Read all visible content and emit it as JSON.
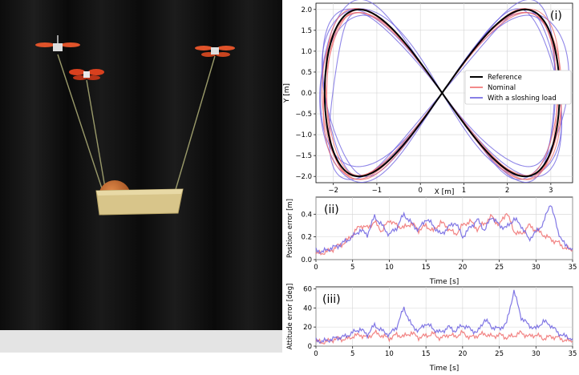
{
  "figure": {
    "panel_i_label": "(i)",
    "panel_ii_label": "(ii)",
    "panel_iii_label": "(iii)"
  },
  "colors": {
    "reference": "#000000",
    "nominal": "#f06e6e",
    "sloshing": "#6b5fe0",
    "photo_background": "#141414",
    "photo_floor": "#e6e6e6"
  },
  "photo": {
    "description_icons": [
      "quadrotor-icon",
      "quadrotor-icon",
      "quadrotor-icon",
      "basket-icon",
      "basketball-icon"
    ]
  },
  "chart_data": [
    {
      "type": "line",
      "id": "trajectory",
      "title": "",
      "xlabel": "X [m]",
      "ylabel": "Y [m]",
      "xlim": [
        -2.4,
        3.5
      ],
      "ylim": [
        -2.15,
        2.15
      ],
      "xticks": [
        -2,
        -1,
        0,
        1,
        2,
        3
      ],
      "yticks": [
        -2.0,
        -1.5,
        -1.0,
        -0.5,
        0.0,
        0.5,
        1.0,
        1.5,
        2.0
      ],
      "grid": true,
      "legend_position": "right",
      "series": [
        {
          "name": "Reference",
          "center_x": 0.5,
          "amp_x": 2.7,
          "amp_y": 2.0,
          "color_key": "reference"
        },
        {
          "name": "Nominal",
          "center_x": 0.5,
          "amp_x": 2.7,
          "amp_y": 2.0,
          "color_key": "nominal"
        },
        {
          "name": "With a sloshing load",
          "center_x": 0.5,
          "amp_x": 2.7,
          "amp_y": 2.0,
          "color_key": "sloshing"
        }
      ]
    },
    {
      "type": "line",
      "id": "position_error",
      "xlabel": "Time [s]",
      "ylabel": "Position error [m]",
      "xlim": [
        0,
        35
      ],
      "ylim": [
        0,
        0.55
      ],
      "xticks": [
        0,
        5,
        10,
        15,
        20,
        25,
        30,
        35
      ],
      "yticks": [
        0.0,
        0.2,
        0.4
      ],
      "grid": true,
      "x": [
        0,
        1,
        2,
        3,
        4,
        5,
        6,
        7,
        8,
        9,
        10,
        11,
        12,
        13,
        14,
        15,
        16,
        17,
        18,
        19,
        20,
        21,
        22,
        23,
        24,
        25,
        26,
        27,
        28,
        29,
        30,
        31,
        32,
        33,
        34,
        35
      ],
      "series": [
        {
          "name": "Nominal",
          "color_key": "nominal",
          "values": [
            0.05,
            0.06,
            0.08,
            0.12,
            0.15,
            0.22,
            0.3,
            0.28,
            0.33,
            0.25,
            0.35,
            0.3,
            0.28,
            0.32,
            0.26,
            0.3,
            0.25,
            0.33,
            0.28,
            0.22,
            0.3,
            0.34,
            0.27,
            0.32,
            0.38,
            0.3,
            0.42,
            0.25,
            0.22,
            0.3,
            0.26,
            0.22,
            0.18,
            0.15,
            0.1,
            0.08
          ]
        },
        {
          "name": "With a sloshing load",
          "color_key": "sloshing",
          "values": [
            0.08,
            0.07,
            0.1,
            0.12,
            0.16,
            0.2,
            0.26,
            0.22,
            0.38,
            0.3,
            0.22,
            0.28,
            0.4,
            0.32,
            0.26,
            0.36,
            0.3,
            0.22,
            0.28,
            0.33,
            0.2,
            0.28,
            0.35,
            0.26,
            0.38,
            0.3,
            0.28,
            0.36,
            0.3,
            0.18,
            0.24,
            0.32,
            0.5,
            0.25,
            0.12,
            0.1
          ]
        }
      ]
    },
    {
      "type": "line",
      "id": "attitude_error",
      "xlabel": "Time [s]",
      "ylabel": "Attitude error [deg]",
      "xlim": [
        0,
        35
      ],
      "ylim": [
        0,
        62
      ],
      "xticks": [
        0,
        5,
        10,
        15,
        20,
        25,
        30,
        35
      ],
      "yticks": [
        0,
        20,
        40,
        60
      ],
      "grid": true,
      "x": [
        0,
        1,
        2,
        3,
        4,
        5,
        6,
        7,
        8,
        9,
        10,
        11,
        12,
        13,
        14,
        15,
        16,
        17,
        18,
        19,
        20,
        21,
        22,
        23,
        24,
        25,
        26,
        27,
        28,
        29,
        30,
        31,
        32,
        33,
        34,
        35
      ],
      "series": [
        {
          "name": "Nominal",
          "color_key": "nominal",
          "values": [
            5,
            4,
            6,
            8,
            7,
            10,
            12,
            9,
            14,
            11,
            8,
            12,
            10,
            14,
            9,
            11,
            13,
            8,
            12,
            10,
            14,
            9,
            11,
            13,
            10,
            12,
            9,
            11,
            14,
            10,
            12,
            8,
            10,
            9,
            6,
            5
          ]
        },
        {
          "name": "With a sloshing load",
          "color_key": "sloshing",
          "values": [
            6,
            5,
            7,
            9,
            10,
            14,
            18,
            12,
            22,
            16,
            12,
            20,
            40,
            22,
            16,
            24,
            18,
            14,
            20,
            16,
            22,
            18,
            14,
            28,
            20,
            18,
            24,
            58,
            30,
            22,
            18,
            26,
            22,
            14,
            10,
            8
          ]
        }
      ]
    }
  ]
}
